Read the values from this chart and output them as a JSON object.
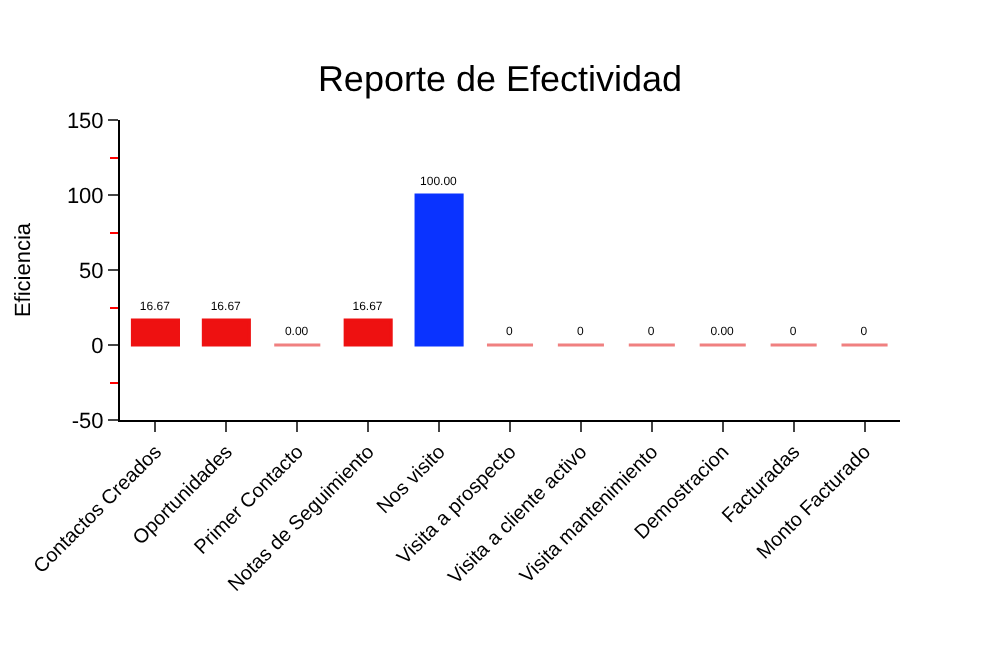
{
  "chart_data": {
    "type": "bar",
    "title": "Reporte de Efectividad",
    "ylabel": "Eficiencia",
    "categories": [
      "Contactos Creados",
      "Oportunidades",
      "Primer Contacto",
      "Notas de Seguimiento",
      "Nos visito",
      "Visita a prospecto",
      "Visita a cliente activo",
      "Visita mantenimiento",
      "Demostracion",
      "Facturadas",
      "Monto Facturado"
    ],
    "values": [
      16.67,
      16.67,
      0,
      16.67,
      100,
      0,
      0,
      0,
      0,
      0,
      0
    ],
    "value_labels": [
      "16.67",
      "16.67",
      "0.00",
      "16.67",
      "100.00",
      "0",
      "0",
      "0",
      "0.00",
      "0",
      "0"
    ],
    "colors": [
      "#ee1111",
      "#ee1111",
      "#f08080",
      "#ee1111",
      "#0a33ff",
      "#f08080",
      "#f08080",
      "#f08080",
      "#f08080",
      "#f08080",
      "#f08080"
    ],
    "ylim": [
      -50,
      150
    ],
    "yticks": [
      -50,
      0,
      50,
      100,
      150
    ]
  }
}
